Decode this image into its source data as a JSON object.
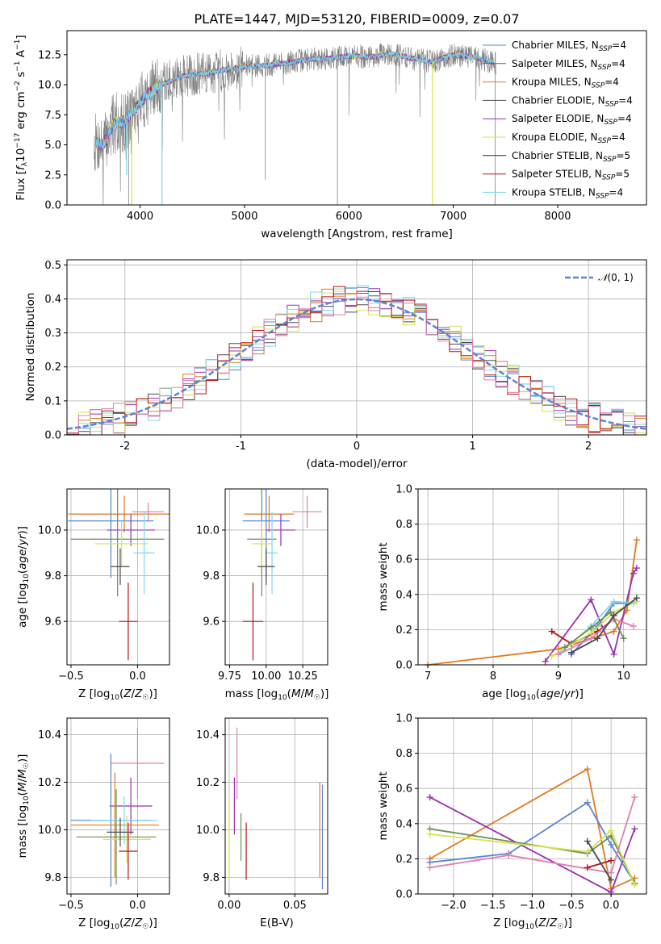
{
  "title": "PLATE=1447, MJD=53120, FIBERID=0009, z=0.07",
  "colors": {
    "Chabrier MILES": "#5b84d4",
    "Salpeter MILES": "#9b30b0",
    "Kroupa MILES": "#df7a1f",
    "Chabrier ELODIE": "#4a4a4a",
    "Salpeter ELODIE": "#9a2fb5",
    "Kroupa ELODIE": "#d8e24a",
    "Chabrier STELIB": "#2f2f2f",
    "Salpeter STELIB": "#b01515",
    "Kroupa STELIB": "#7fd9e6",
    "Green": "#6b8e5a",
    "Pink": "#e07fb0",
    "Data": "#808080"
  },
  "chart_data": [
    {
      "type": "line",
      "title": "PLATE=1447, MJD=53120, FIBERID=0009, z=0.07",
      "xlabel": "wavelength [Angstrom, rest frame]",
      "ylabel": "Flux [f_λ 10^-17 erg cm^-2 s^-1 A^-1]",
      "xlim": [
        3300,
        8850
      ],
      "ylim": [
        0,
        14.5
      ],
      "xticks": [
        4000,
        5000,
        6000,
        7000,
        8000
      ],
      "yticks": [
        0.0,
        2.5,
        5.0,
        7.5,
        10.0,
        12.5
      ],
      "legend": [
        "Chabrier MILES, N_SSP=4",
        "Salpeter MILES, N_SSP=4",
        "Kroupa MILES, N_SSP=4",
        "Chabrier ELODIE, N_SSP=4",
        "Salpeter ELODIE, N_SSP=4",
        "Kroupa ELODIE, N_SSP=4",
        "Chabrier STELIB, N_SSP=5",
        "Salpeter STELIB, N_SSP=5",
        "Kroupa STELIB, N_SSP=4"
      ],
      "continuum": {
        "x": [
          3550,
          3650,
          3750,
          3850,
          3950,
          4050,
          4200,
          4400,
          4600,
          4800,
          5000,
          5200,
          5400,
          5600,
          5800,
          6000,
          6200,
          6400,
          6600,
          6800,
          7000,
          7200,
          7400
        ],
        "y": [
          5.2,
          5.0,
          6.8,
          6.9,
          8.0,
          9.0,
          10.0,
          10.7,
          10.9,
          11.2,
          11.5,
          11.6,
          11.8,
          12.1,
          12.2,
          12.4,
          12.3,
          12.6,
          12.2,
          11.9,
          12.5,
          12.3,
          11.8
        ]
      }
    },
    {
      "type": "histogram",
      "xlabel": "(data-model)/error",
      "ylabel": "Normed distribution",
      "xlim": [
        -2.5,
        2.5
      ],
      "ylim": [
        0,
        0.515
      ],
      "xticks": [
        -2,
        -1,
        0,
        1,
        2
      ],
      "yticks": [
        0.0,
        0.1,
        0.2,
        0.3,
        0.4,
        0.5
      ],
      "legend": [
        "N(0, 1)"
      ],
      "bin_width": 0.1,
      "bin_start": -2.5,
      "model_curve": "gaussian N(0,1)"
    },
    {
      "type": "scatter",
      "xlabel": "Z [log10(Z/Z_sun)]",
      "ylabel": "age [log10(age/yr)]",
      "xlim": [
        -0.53,
        0.24
      ],
      "ylim": [
        9.41,
        10.18
      ],
      "xticks": [
        -0.5,
        0.0
      ],
      "yticks": [
        9.6,
        9.8,
        10.0
      ],
      "points": [
        {
          "s": "Kroupa MILES",
          "x": -0.1,
          "y": 10.07,
          "xe": 0.42,
          "ye": 0.08
        },
        {
          "s": "Pink",
          "x": 0.08,
          "y": 10.08,
          "xe": 0.12,
          "ye": 0.04
        },
        {
          "s": "Chabrier MILES",
          "x": -0.2,
          "y": 10.04,
          "xe": 0.32,
          "ye": 0.25
        },
        {
          "s": "Salpeter MILES",
          "x": -0.05,
          "y": 10.0,
          "xe": 0.18,
          "ye": 0.07
        },
        {
          "s": "Green",
          "x": -0.15,
          "y": 9.96,
          "xe": 0.35,
          "ye": 0.25
        },
        {
          "s": "Kroupa ELODIE",
          "x": -0.12,
          "y": 9.94,
          "xe": 0.2,
          "ye": 0.1
        },
        {
          "s": "Kroupa STELIB",
          "x": 0.05,
          "y": 9.9,
          "xe": 0.08,
          "ye": 0.18
        },
        {
          "s": "Chabrier ELODIE",
          "x": -0.13,
          "y": 9.84,
          "xe": 0.07,
          "ye": 0.08
        },
        {
          "s": "Salpeter STELIB",
          "x": -0.07,
          "y": 9.6,
          "xe": 0.07,
          "ye": 0.17
        }
      ]
    },
    {
      "type": "scatter",
      "xlabel": "mass [log10(M/M_sun)]",
      "ylabel": "",
      "xlim": [
        9.72,
        10.42
      ],
      "ylim": [
        9.41,
        10.18
      ],
      "xticks": [
        9.75,
        10.0,
        10.25
      ],
      "yticks": [
        9.6,
        9.8,
        10.0
      ],
      "points": [
        {
          "s": "Kroupa MILES",
          "x": 10.02,
          "y": 10.07,
          "xe": 0.17,
          "ye": 0.08
        },
        {
          "s": "Pink",
          "x": 10.28,
          "y": 10.08,
          "xe": 0.1,
          "ye": 0.07
        },
        {
          "s": "Chabrier MILES",
          "x": 10.0,
          "y": 10.04,
          "xe": 0.16,
          "ye": 0.25
        },
        {
          "s": "Salpeter MILES",
          "x": 10.1,
          "y": 10.0,
          "xe": 0.1,
          "ye": 0.07
        },
        {
          "s": "Green",
          "x": 9.97,
          "y": 9.96,
          "xe": 0.1,
          "ye": 0.25
        },
        {
          "s": "Kroupa ELODIE",
          "x": 9.97,
          "y": 9.94,
          "xe": 0.07,
          "ye": 0.1
        },
        {
          "s": "Kroupa STELIB",
          "x": 10.04,
          "y": 9.9,
          "xe": 0.04,
          "ye": 0.18
        },
        {
          "s": "Chabrier ELODIE",
          "x": 10.0,
          "y": 9.84,
          "xe": 0.06,
          "ye": 0.08
        },
        {
          "s": "Salpeter STELIB",
          "x": 9.91,
          "y": 9.6,
          "xe": 0.07,
          "ye": 0.17
        }
      ]
    },
    {
      "type": "line",
      "xlabel": "age [log10(age/yr)]",
      "ylabel": "mass weight",
      "xlim": [
        6.85,
        10.35
      ],
      "ylim": [
        0,
        1.0
      ],
      "xticks": [
        7,
        8,
        9,
        10
      ],
      "yticks": [
        0.0,
        0.2,
        0.4,
        0.6,
        0.8,
        1.0
      ],
      "series": [
        {
          "s": "Kroupa MILES",
          "x": [
            7.0,
            9.0,
            9.85,
            10.05,
            10.2
          ],
          "y": [
            0.0,
            0.09,
            0.19,
            0.31,
            0.71
          ]
        },
        {
          "s": "Salpeter MILES",
          "x": [
            8.8,
            9.5,
            9.85,
            10.15,
            10.2
          ],
          "y": [
            0.02,
            0.37,
            0.06,
            0.52,
            0.55
          ]
        },
        {
          "s": "Chabrier MILES",
          "x": [
            9.2,
            9.6,
            9.85,
            10.05
          ],
          "y": [
            0.06,
            0.22,
            0.35,
            0.35
          ]
        },
        {
          "s": "Salpeter STELIB",
          "x": [
            8.9,
            9.2,
            9.6,
            9.85
          ],
          "y": [
            0.19,
            0.12,
            0.19,
            0.26
          ]
        },
        {
          "s": "Kroupa ELODIE",
          "x": [
            8.9,
            9.5,
            9.85,
            10.2
          ],
          "y": [
            0.05,
            0.18,
            0.3,
            0.36
          ]
        },
        {
          "s": "Kroupa STELIB",
          "x": [
            9.0,
            9.5,
            9.85,
            10.15
          ],
          "y": [
            0.06,
            0.22,
            0.36,
            0.35
          ]
        },
        {
          "s": "Pink",
          "x": [
            9.0,
            9.5,
            9.85,
            10.15
          ],
          "y": [
            0.06,
            0.15,
            0.26,
            0.22
          ]
        },
        {
          "s": "Green",
          "x": [
            9.1,
            9.5,
            9.8,
            10.0
          ],
          "y": [
            0.1,
            0.21,
            0.3,
            0.15
          ]
        },
        {
          "s": "Chabrier ELODIE",
          "x": [
            9.2,
            9.6,
            9.85,
            10.2
          ],
          "y": [
            0.07,
            0.15,
            0.28,
            0.38
          ]
        }
      ]
    },
    {
      "type": "scatter",
      "xlabel": "Z [log10(Z/Z_sun)]",
      "ylabel": "mass [log10(M/M_sun)]",
      "xlim": [
        -0.53,
        0.24
      ],
      "ylim": [
        9.73,
        10.47
      ],
      "xticks": [
        -0.5,
        0.0
      ],
      "yticks": [
        9.8,
        10.0,
        10.2,
        10.4
      ],
      "points": [
        {
          "s": "Pink",
          "x": 0.0,
          "y": 10.28,
          "xe": 0.2,
          "ye": 0.15
        },
        {
          "s": "Salpeter MILES",
          "x": -0.05,
          "y": 10.1,
          "xe": 0.16,
          "ye": 0.12
        },
        {
          "s": "Chabrier MILES",
          "x": -0.2,
          "y": 10.04,
          "xe": 0.3,
          "ye": 0.28
        },
        {
          "s": "Kroupa MILES",
          "x": -0.17,
          "y": 10.02,
          "xe": 0.33,
          "ye": 0.22
        },
        {
          "s": "Green",
          "x": -0.16,
          "y": 9.97,
          "xe": 0.3,
          "ye": 0.2
        },
        {
          "s": "Kroupa STELIB",
          "x": -0.1,
          "y": 10.04,
          "xe": 0.25,
          "ye": 0.1
        },
        {
          "s": "Kroupa ELODIE",
          "x": -0.08,
          "y": 9.96,
          "xe": 0.18,
          "ye": 0.1
        },
        {
          "s": "Chabrier ELODIE",
          "x": -0.13,
          "y": 9.99,
          "xe": 0.1,
          "ye": 0.06
        },
        {
          "s": "Salpeter STELIB",
          "x": -0.07,
          "y": 9.91,
          "xe": 0.07,
          "ye": 0.12
        }
      ]
    },
    {
      "type": "scatter",
      "xlabel": "E(B-V)",
      "ylabel": "",
      "xlim": [
        -0.003,
        0.075
      ],
      "ylim": [
        9.73,
        10.47
      ],
      "xticks": [
        0.0,
        0.05
      ],
      "yticks": [
        9.8,
        10.0,
        10.2,
        10.4
      ],
      "points": [
        {
          "s": "Kroupa ELODIE",
          "x": 0.0,
          "y": 9.96,
          "xe": 0.0,
          "ye": 0.17
        },
        {
          "s": "Salpeter MILES",
          "x": 0.004,
          "y": 10.1,
          "xe": 0.0,
          "ye": 0.12
        },
        {
          "s": "Pink",
          "x": 0.006,
          "y": 10.28,
          "xe": 0.0,
          "ye": 0.15
        },
        {
          "s": "Green",
          "x": 0.009,
          "y": 9.97,
          "xe": 0.0,
          "ye": 0.1
        },
        {
          "s": "Salpeter STELIB",
          "x": 0.013,
          "y": 9.91,
          "xe": 0.0,
          "ye": 0.12
        },
        {
          "s": "Kroupa MILES",
          "x": 0.069,
          "y": 10.0,
          "xe": 0.0,
          "ye": 0.2
        },
        {
          "s": "Chabrier MILES",
          "x": 0.071,
          "y": 9.97,
          "xe": 0.0,
          "ye": 0.22
        }
      ]
    },
    {
      "type": "line",
      "xlabel": "Z [log10(Z/Z_sun)]",
      "ylabel": "mass weight",
      "xlim": [
        -2.45,
        0.45
      ],
      "ylim": [
        0,
        1.0
      ],
      "xticks": [
        -2.0,
        -1.5,
        -1.0,
        -0.5,
        0.0
      ],
      "yticks": [
        0.0,
        0.2,
        0.4,
        0.6,
        0.8,
        1.0
      ],
      "series": [
        {
          "s": "Kroupa MILES",
          "x": [
            -2.3,
            -0.3,
            0.0,
            0.3
          ],
          "y": [
            0.2,
            0.71,
            0.03,
            0.09
          ]
        },
        {
          "s": "Salpeter MILES",
          "x": [
            -2.3,
            0.0,
            0.3
          ],
          "y": [
            0.55,
            0.01,
            0.37
          ]
        },
        {
          "s": "Chabrier MILES",
          "x": [
            -2.3,
            -1.3,
            -0.3,
            0.0,
            0.3
          ],
          "y": [
            0.18,
            0.23,
            0.52,
            0.28,
            0.06
          ]
        },
        {
          "s": "Green",
          "x": [
            -2.3,
            -0.3,
            0.0,
            0.3
          ],
          "y": [
            0.37,
            0.23,
            0.33,
            0.06
          ]
        },
        {
          "s": "Kroupa ELODIE",
          "x": [
            -2.3,
            -0.3,
            0.0,
            0.3
          ],
          "y": [
            0.34,
            0.24,
            0.36,
            0.05
          ]
        },
        {
          "s": "Pink",
          "x": [
            -2.3,
            -1.3,
            0.0,
            0.3
          ],
          "y": [
            0.15,
            0.22,
            0.12,
            0.55
          ]
        },
        {
          "s": "Salpeter STELIB",
          "x": [
            -0.3,
            0.0
          ],
          "y": [
            0.15,
            0.19
          ]
        },
        {
          "s": "Chabrier ELODIE",
          "x": [
            -0.3,
            0.0
          ],
          "y": [
            0.3,
            0.08
          ]
        }
      ]
    }
  ]
}
